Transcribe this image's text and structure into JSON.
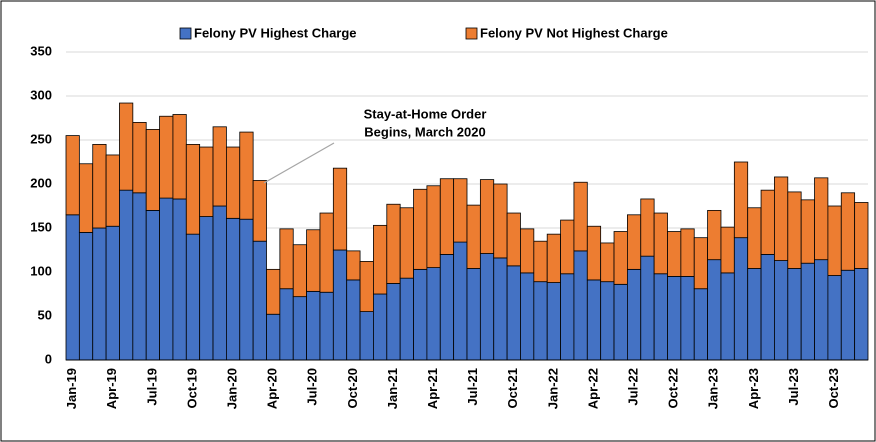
{
  "chart_data": {
    "type": "stacked_bar",
    "categories": [
      "Jan-19",
      null,
      null,
      "Apr-19",
      null,
      null,
      "Jul-19",
      null,
      null,
      "Oct-19",
      null,
      null,
      "Jan-20",
      null,
      null,
      "Apr-20",
      null,
      null,
      "Jul-20",
      null,
      null,
      "Oct-20",
      null,
      null,
      "Jan-21",
      null,
      null,
      "Apr-21",
      null,
      null,
      "Jul-21",
      null,
      null,
      "Oct-21",
      null,
      null,
      "Jan-22",
      null,
      null,
      "Apr-22",
      null,
      null,
      "Jul-22",
      null,
      null,
      "Oct-22",
      null,
      null,
      "Jan-23",
      null,
      null,
      "Apr-23",
      null,
      null,
      "Jul-23",
      null,
      null,
      "Oct-23",
      null,
      null
    ],
    "series": [
      {
        "name": "Felony PV Highest Charge",
        "color": "#4472c4",
        "values": [
          165,
          145,
          150,
          152,
          193,
          190,
          170,
          184,
          183,
          143,
          163,
          175,
          161,
          160,
          135,
          52,
          81,
          72,
          78,
          77,
          125,
          91,
          55,
          75,
          87,
          93,
          103,
          105,
          120,
          134,
          104,
          121,
          116,
          107,
          99,
          89,
          88,
          98,
          124,
          91,
          89,
          86,
          103,
          118,
          98,
          95,
          95,
          81,
          114,
          99,
          139,
          104,
          120,
          113,
          104,
          110,
          114,
          96,
          102,
          104
        ]
      },
      {
        "name": "Felony PV Not Highest Charge",
        "color": "#ed7d31",
        "values": [
          90,
          78,
          95,
          81,
          99,
          80,
          92,
          93,
          96,
          102,
          79,
          90,
          81,
          99,
          69,
          51,
          68,
          59,
          70,
          90,
          93,
          33,
          57,
          78,
          90,
          80,
          91,
          93,
          86,
          72,
          72,
          84,
          84,
          60,
          50,
          46,
          55,
          61,
          78,
          61,
          44,
          60,
          62,
          65,
          69,
          51,
          54,
          58,
          56,
          52,
          86,
          69,
          73,
          95,
          87,
          72,
          93,
          79,
          88,
          75
        ]
      }
    ],
    "ylim": [
      0,
      350
    ],
    "yticks": [
      0,
      50,
      100,
      150,
      200,
      250,
      300,
      350
    ],
    "grid": true,
    "legend": "top",
    "annotation": {
      "lines": [
        "Stay-at-Home Order",
        "Begins, March 2020"
      ]
    }
  }
}
